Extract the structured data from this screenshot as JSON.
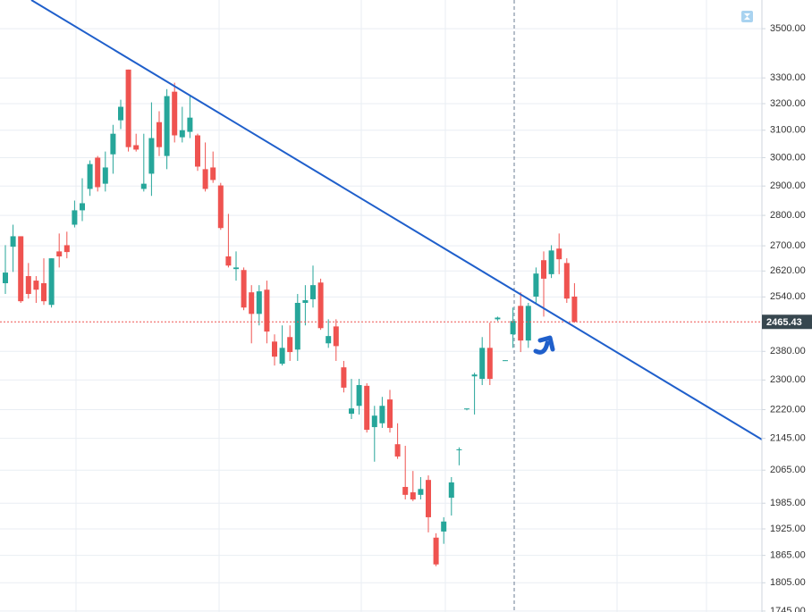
{
  "chart_data": {
    "type": "candlestick",
    "yscale": "log",
    "ylim": [
      1743,
      3622
    ],
    "yticks": [
      {
        "value": 3500,
        "label": "3500.00"
      },
      {
        "value": 3300,
        "label": "3300.00"
      },
      {
        "value": 3200,
        "label": "3200.00"
      },
      {
        "value": 3100,
        "label": "3100.00"
      },
      {
        "value": 3000,
        "label": "3000.00"
      },
      {
        "value": 2900,
        "label": "2900.00"
      },
      {
        "value": 2800,
        "label": "2800.00"
      },
      {
        "value": 2700,
        "label": "2700.00"
      },
      {
        "value": 2620,
        "label": "2620.00"
      },
      {
        "value": 2540,
        "label": "2540.00"
      },
      {
        "value": 2380,
        "label": "2380.00"
      },
      {
        "value": 2300,
        "label": "2300.00"
      },
      {
        "value": 2220,
        "label": "2220.00"
      },
      {
        "value": 2145,
        "label": "2145.00"
      },
      {
        "value": 2065,
        "label": "2065.00"
      },
      {
        "value": 1985,
        "label": "1985.00"
      },
      {
        "value": 1925,
        "label": "1925.00"
      },
      {
        "value": 1865,
        "label": "1865.00"
      },
      {
        "value": 1805,
        "label": "1805.00"
      },
      {
        "value": 1745,
        "label": "1745.00"
      }
    ],
    "grid": true,
    "up_color": "#26a69a",
    "down_color": "#ef5350",
    "open": [
      2582,
      2697,
      2731,
      2604,
      2590,
      2582,
      2516,
      2682,
      2702,
      2769,
      2817,
      2890,
      3000,
      2908,
      3012,
      3137,
      3333,
      3045,
      2890,
      2943,
      3130,
      3006,
      3246,
      3074,
      3094,
      3081,
      2959,
      2965,
      2902,
      2666,
      2626,
      2623,
      2554,
      2489,
      2562,
      2408,
      2345,
      2421,
      2385,
      2522,
      2533,
      2584,
      2403,
      2452,
      2335,
      2209,
      2230,
      2284,
      2174,
      2184,
      2247,
      2130,
      2024,
      2011,
      2005,
      2041,
      1905,
      1919,
      1998,
      2115,
      2221,
      2310,
      2303,
      2390,
      2473,
      2353,
      2429,
      2513,
      2411,
      2541,
      2654,
      2610,
      2691,
      2645,
      2541
    ],
    "high": [
      2702,
      2769,
      2731,
      2645,
      2604,
      2660,
      2660,
      2740,
      2746,
      2850,
      2927,
      2990,
      3006,
      3022,
      3120,
      3215,
      3333,
      3087,
      3087,
      3205,
      3171,
      3256,
      3281,
      3188,
      3229,
      3087,
      3055,
      3022,
      2911,
      2805,
      2682,
      2631,
      2576,
      2576,
      2590,
      2429,
      2455,
      2455,
      2549,
      2576,
      2637,
      2596,
      2473,
      2473,
      2353,
      2303,
      2303,
      2291,
      2230,
      2254,
      2273,
      2184,
      2126,
      2063,
      2048,
      2052,
      1915,
      1952,
      2048,
      2122,
      2223,
      2320,
      2421,
      2463,
      2481,
      2355,
      2508,
      2554,
      2522,
      2631,
      2682,
      2702,
      2740,
      2660,
      2582
    ],
    "low": [
      2549,
      2617,
      2522,
      2535,
      2522,
      2516,
      2508,
      2631,
      2660,
      2760,
      2781,
      2866,
      2881,
      2881,
      2943,
      3104,
      3022,
      3022,
      2881,
      2866,
      3006,
      2959,
      3055,
      3055,
      3071,
      2953,
      2881,
      2911,
      2752,
      2631,
      2590,
      2500,
      2403,
      2455,
      2403,
      2340,
      2340,
      2353,
      2353,
      2455,
      2508,
      2442,
      2390,
      2353,
      2266,
      2195,
      2207,
      2160,
      2086,
      2172,
      2160,
      2093,
      1994,
      1990,
      1994,
      1917,
      1841,
      1891,
      1956,
      2077,
      2218,
      2207,
      2286,
      2286,
      2468,
      2353,
      2390,
      2378,
      2390,
      2522,
      2481,
      2598,
      2610,
      2522,
      2463
    ],
    "close": [
      2615,
      2731,
      2527,
      2549,
      2562,
      2527,
      2660,
      2666,
      2680,
      2817,
      2841,
      2977,
      2896,
      2965,
      3087,
      3188,
      3038,
      3029,
      2908,
      3071,
      3038,
      3229,
      3081,
      3100,
      3147,
      2968,
      2890,
      2921,
      2758,
      2637,
      2631,
      2508,
      2489,
      2557,
      2437,
      2365,
      2390,
      2378,
      2522,
      2530,
      2576,
      2447,
      2424,
      2395,
      2279,
      2223,
      2286,
      2167,
      2204,
      2230,
      2172,
      2099,
      2005,
      1994,
      2019,
      1952,
      1845,
      1942,
      2035,
      2117,
      2223,
      2315,
      2390,
      2303,
      2478,
      2355,
      2468,
      2411,
      2513,
      2612,
      2596,
      2685,
      2657,
      2535,
      2465.43
    ]
  }
}
